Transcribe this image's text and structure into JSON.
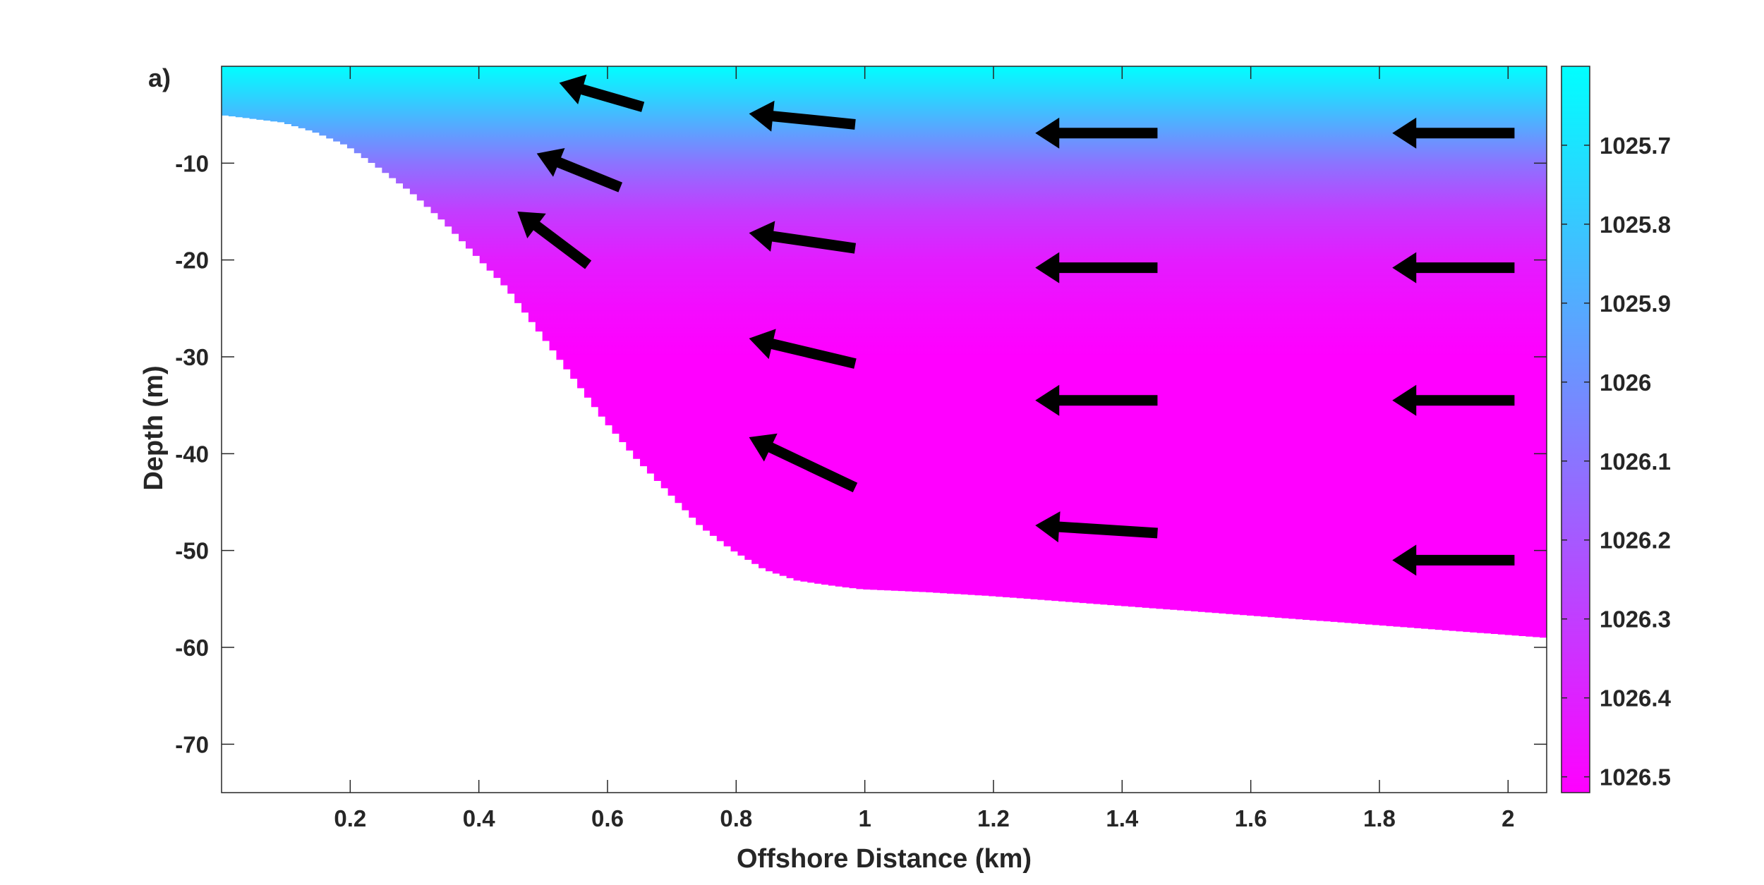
{
  "chart_data": {
    "type": "heatmap",
    "panel_label": "a)",
    "title": "",
    "xlabel": "Offshore Distance (km)",
    "ylabel": "Depth (m)",
    "xlim": [
      0,
      2.06
    ],
    "ylim": [
      -75,
      0
    ],
    "x_ticks": [
      0.2,
      0.4,
      0.6,
      0.8,
      1,
      1.2,
      1.4,
      1.6,
      1.8,
      2
    ],
    "x_tick_labels": [
      "0.2",
      "0.4",
      "0.6",
      "0.8",
      "1",
      "1.2",
      "1.4",
      "1.6",
      "1.8",
      "2"
    ],
    "y_ticks": [
      -10,
      -20,
      -30,
      -40,
      -50,
      -60,
      -70
    ],
    "y_tick_labels": [
      "-10",
      "-20",
      "-30",
      "-40",
      "-50",
      "-60",
      "-70"
    ],
    "grid": false,
    "colorbar": {
      "range": [
        1025.6,
        1026.52
      ],
      "ticks": [
        1025.7,
        1025.8,
        1025.9,
        1026,
        1026.1,
        1026.2,
        1026.3,
        1026.4,
        1026.5
      ],
      "tick_labels": [
        "1025.7",
        "1025.8",
        "1025.9",
        "1026",
        "1026.1",
        "1026.2",
        "1026.3",
        "1026.4",
        "1026.5"
      ],
      "colormap": "cool",
      "reversed": true,
      "color_low_value": "#00ffff",
      "color_high_value": "#ff00ff",
      "location": "right"
    },
    "density_profile": [
      {
        "depth": 0,
        "value": 1025.6
      },
      {
        "depth": -5,
        "value": 1025.85
      },
      {
        "depth": -10,
        "value": 1026.1
      },
      {
        "depth": -15,
        "value": 1026.3
      },
      {
        "depth": -20,
        "value": 1026.42
      },
      {
        "depth": -25,
        "value": 1026.48
      },
      {
        "depth": -30,
        "value": 1026.52
      },
      {
        "depth": -75,
        "value": 1026.52
      }
    ],
    "bathymetry": [
      [
        0,
        -5
      ],
      [
        0.05,
        -5.4
      ],
      [
        0.1,
        -5.8
      ],
      [
        0.15,
        -6.8
      ],
      [
        0.2,
        -8.2
      ],
      [
        0.25,
        -10.5
      ],
      [
        0.3,
        -13
      ],
      [
        0.35,
        -16
      ],
      [
        0.4,
        -19.5
      ],
      [
        0.45,
        -23
      ],
      [
        0.5,
        -27.5
      ],
      [
        0.55,
        -32
      ],
      [
        0.6,
        -36.5
      ],
      [
        0.65,
        -40.5
      ],
      [
        0.7,
        -44
      ],
      [
        0.75,
        -47.5
      ],
      [
        0.8,
        -50
      ],
      [
        0.85,
        -52
      ],
      [
        0.9,
        -53.1
      ],
      [
        0.95,
        -53.6
      ],
      [
        1.0,
        -54
      ],
      [
        1.1,
        -54.3
      ],
      [
        1.2,
        -54.7
      ],
      [
        1.3,
        -55.2
      ],
      [
        1.4,
        -55.7
      ],
      [
        1.5,
        -56.2
      ],
      [
        1.6,
        -56.7
      ],
      [
        1.7,
        -57.2
      ],
      [
        1.8,
        -57.7
      ],
      [
        1.9,
        -58.2
      ],
      [
        2.0,
        -58.7
      ],
      [
        2.06,
        -59
      ]
    ],
    "arrows": [
      {
        "x": 0.655,
        "y": -4.2,
        "u": -0.13,
        "v": 2.5
      },
      {
        "x": 0.62,
        "y": -12.5,
        "u": -0.13,
        "v": 3.5
      },
      {
        "x": 0.57,
        "y": -20.5,
        "u": -0.11,
        "v": 5.5
      },
      {
        "x": 0.985,
        "y": -6.0,
        "u": -0.165,
        "v": 1.1
      },
      {
        "x": 0.985,
        "y": -18.8,
        "u": -0.165,
        "v": 1.6
      },
      {
        "x": 0.985,
        "y": -30.7,
        "u": -0.165,
        "v": 2.6
      },
      {
        "x": 0.985,
        "y": -43.5,
        "u": -0.165,
        "v": 5.2
      },
      {
        "x": 1.455,
        "y": -6.9,
        "u": -0.19,
        "v": 0
      },
      {
        "x": 1.455,
        "y": -20.8,
        "u": -0.19,
        "v": 0
      },
      {
        "x": 1.455,
        "y": -34.5,
        "u": -0.19,
        "v": 0
      },
      {
        "x": 1.455,
        "y": -48.2,
        "u": -0.19,
        "v": 0.8
      },
      {
        "x": 2.01,
        "y": -6.9,
        "u": -0.19,
        "v": 0
      },
      {
        "x": 2.01,
        "y": -20.8,
        "u": -0.19,
        "v": 0
      },
      {
        "x": 2.01,
        "y": -34.5,
        "u": -0.19,
        "v": 0
      },
      {
        "x": 2.01,
        "y": -51.0,
        "u": -0.19,
        "v": 0
      }
    ],
    "arrow_color": "#000000"
  }
}
